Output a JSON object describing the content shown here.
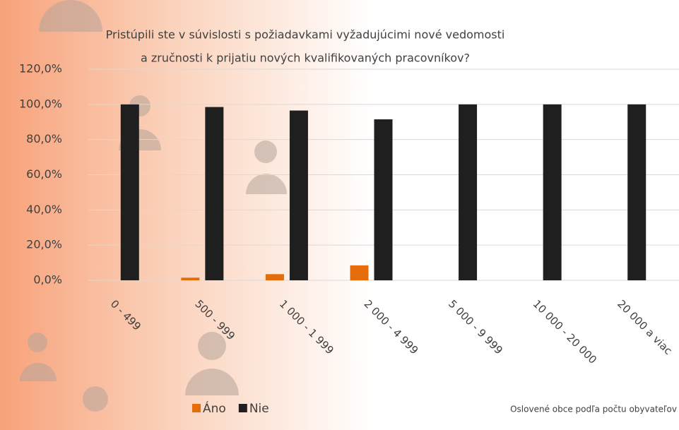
{
  "chart_data": {
    "type": "bar",
    "title": [
      "Pristúpili ste v súvislosti s požiadavkami vyžadujúcimi nové vedomosti",
      "a zručnosti k prijatiu nových kvalifikovaných pracovníkov?"
    ],
    "x_label": "Oslovené obce podľa počtu obyvateľov",
    "categories": [
      "0 - 499",
      "500 - 999",
      "1 000 - 1 999",
      "2 000 - 4 999",
      "5 000 - 9 999",
      "10 000 - 20 000",
      "20 000 a viac"
    ],
    "series": [
      {
        "name": "Áno",
        "color": "#e46c0a",
        "values": [
          0,
          1.5,
          3.5,
          8.5,
          0,
          0,
          0
        ]
      },
      {
        "name": "Nie",
        "color": "#1f1f1f",
        "values": [
          100,
          98.5,
          96.5,
          91.5,
          100,
          100,
          100
        ]
      }
    ],
    "ylim": [
      0,
      120
    ],
    "yticks": [
      {
        "value": 0,
        "label": "0,0%"
      },
      {
        "value": 20,
        "label": "20,0%"
      },
      {
        "value": 40,
        "label": "40,0%"
      },
      {
        "value": 60,
        "label": "60,0%"
      },
      {
        "value": 80,
        "label": "80,0%"
      },
      {
        "value": 100,
        "label": "100,0%"
      },
      {
        "value": 120,
        "label": "120,0%"
      }
    ],
    "grid": true,
    "legend": "bottom"
  }
}
